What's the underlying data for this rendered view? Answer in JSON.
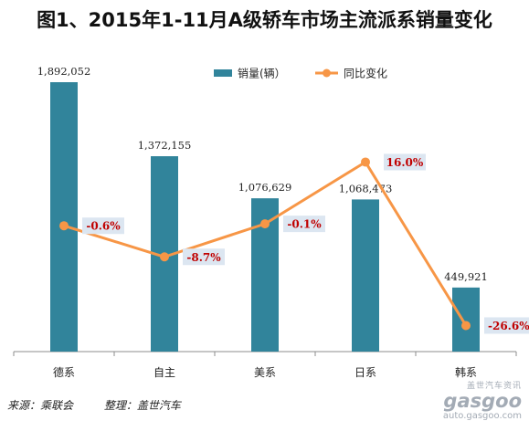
{
  "title": "图1、2015年1-11月A级轿车市场主流派系销量变化",
  "footer": {
    "source": "来源：乘联会",
    "editor": "整理：盖世汽车"
  },
  "watermark": {
    "brand_cn": "盖世汽车资讯",
    "brand": "gasgoo",
    "url": "auto.gasgoo.com"
  },
  "colors": {
    "bar": "#31849b",
    "line": "#f79646",
    "yoy_label": "#c00000",
    "yoy_label_bg": "#dce6f1"
  },
  "chart_data": {
    "type": "bar",
    "title": "图1、2015年1-11月A级轿车市场主流派系销量变化",
    "categories": [
      "德系",
      "自主",
      "美系",
      "日系",
      "韩系"
    ],
    "series": [
      {
        "name": "销量(辆）",
        "type": "bar",
        "values": [
          1892052,
          1372155,
          1076629,
          1068473,
          449921
        ],
        "labels": [
          "1,892,052",
          "1,372,155",
          "1,076,629",
          "1,068,473",
          "449,921"
        ]
      },
      {
        "name": "同比变化",
        "type": "line",
        "values": [
          -0.6,
          -8.7,
          -0.1,
          16.0,
          -26.6
        ],
        "labels": [
          "-0.6%",
          "-8.7%",
          "-0.1%",
          "16.0%",
          "-26.6%"
        ]
      }
    ],
    "legend_position": "top-right",
    "grid": false
  }
}
